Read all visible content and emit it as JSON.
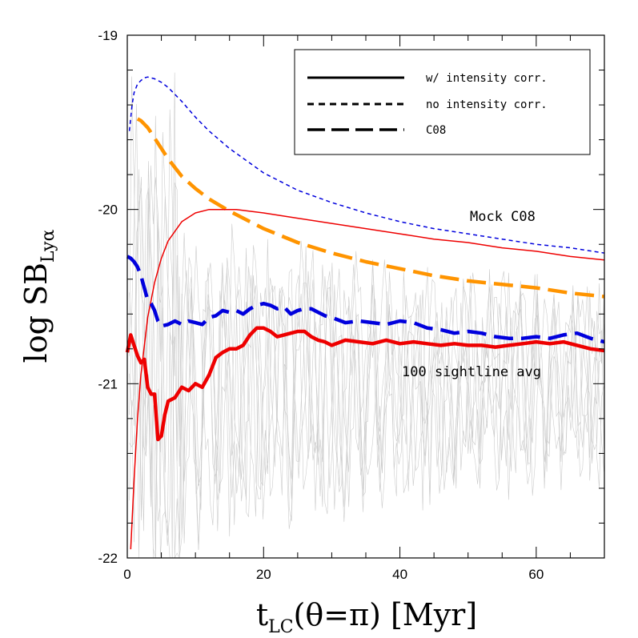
{
  "chart_data": {
    "type": "line",
    "xlabel": {
      "main": "t",
      "sub": "LC",
      "rest": "(θ=π)  [Myr]"
    },
    "ylabel": {
      "main": "log SB",
      "sub": "Lyα"
    },
    "xlim": [
      0,
      70
    ],
    "ylim": [
      -22,
      -19
    ],
    "xticks": [
      0,
      20,
      40,
      60
    ],
    "yticks": [
      -22,
      -21,
      -20,
      -19
    ],
    "xtick_labels": [
      "0",
      "20",
      "40",
      "60"
    ],
    "ytick_labels": [
      "-22",
      "-21",
      "-20",
      "-19"
    ],
    "grid": false,
    "legend_position": "top-right",
    "legend": [
      {
        "label": "w/ intensity corr.",
        "style": "solid"
      },
      {
        "label": "no intensity corr.",
        "style": "dotted"
      },
      {
        "label": "C08",
        "style": "dashed"
      }
    ],
    "annotations": [
      {
        "text": "Mock C08",
        "x": 57,
        "y": -20.05
      },
      {
        "text": "100 sightline avg",
        "x": 54,
        "y": -20.98
      }
    ],
    "colors": {
      "red": "#ee0000",
      "blue": "#0000dd",
      "orange": "#ff9400",
      "gray": "#cccccc"
    },
    "series": [
      {
        "group": "mock",
        "color": "#0000dd",
        "style": "dotted",
        "width": "thin",
        "x": [
          0.3,
          0.7,
          1,
          1.5,
          2,
          2.5,
          3,
          3.5,
          4,
          5,
          6,
          8,
          10,
          12,
          15,
          20,
          25,
          30,
          35,
          40,
          45,
          50,
          55,
          60,
          65,
          70
        ],
        "y": [
          -19.55,
          -19.4,
          -19.33,
          -19.28,
          -19.26,
          -19.245,
          -19.24,
          -19.245,
          -19.25,
          -19.27,
          -19.3,
          -19.38,
          -19.47,
          -19.55,
          -19.65,
          -19.79,
          -19.89,
          -19.96,
          -20.02,
          -20.07,
          -20.11,
          -20.14,
          -20.17,
          -20.2,
          -20.22,
          -20.25
        ]
      },
      {
        "group": "mock",
        "color": "#ff9400",
        "style": "dashed",
        "width": "thick",
        "x": [
          1.5,
          2,
          3,
          4,
          5,
          6,
          8,
          10,
          12,
          15,
          20,
          25,
          30,
          35,
          40,
          45,
          50,
          55,
          60,
          65,
          70
        ],
        "y": [
          -19.48,
          -19.49,
          -19.53,
          -19.59,
          -19.65,
          -19.71,
          -19.81,
          -19.88,
          -19.94,
          -20.01,
          -20.11,
          -20.19,
          -20.25,
          -20.3,
          -20.34,
          -20.38,
          -20.41,
          -20.43,
          -20.45,
          -20.48,
          -20.5
        ]
      },
      {
        "group": "mock",
        "color": "#ee0000",
        "style": "solid",
        "width": "thin",
        "x": [
          0.5,
          1,
          1.5,
          2,
          3,
          4,
          5,
          6,
          8,
          10,
          12,
          14,
          16,
          20,
          25,
          30,
          35,
          40,
          45,
          50,
          55,
          60,
          65,
          70
        ],
        "y": [
          -21.95,
          -21.55,
          -21.2,
          -20.95,
          -20.62,
          -20.42,
          -20.28,
          -20.18,
          -20.07,
          -20.02,
          -20.0,
          -20.0,
          -20.0,
          -20.02,
          -20.05,
          -20.08,
          -20.11,
          -20.14,
          -20.17,
          -20.19,
          -20.22,
          -20.24,
          -20.27,
          -20.29
        ]
      },
      {
        "group": "avg",
        "color": "#0000dd",
        "style": "dashed",
        "width": "thick",
        "x": [
          0,
          0.5,
          1,
          1.5,
          2,
          2.5,
          3,
          3.5,
          4,
          4.5,
          5,
          6,
          7,
          8,
          9,
          10,
          11,
          12,
          13,
          14,
          15,
          16,
          17,
          18,
          19,
          20,
          21,
          22,
          23,
          24,
          25,
          26,
          27,
          28,
          29,
          30,
          32,
          34,
          36,
          38,
          40,
          42,
          44,
          46,
          48,
          50,
          52,
          54,
          56,
          58,
          60,
          62,
          64,
          66,
          68,
          70
        ],
        "y": [
          -20.27,
          -20.28,
          -20.3,
          -20.33,
          -20.38,
          -20.45,
          -20.52,
          -20.54,
          -20.58,
          -20.64,
          -20.67,
          -20.66,
          -20.64,
          -20.66,
          -20.64,
          -20.65,
          -20.66,
          -20.62,
          -20.61,
          -20.58,
          -20.59,
          -20.58,
          -20.6,
          -20.57,
          -20.55,
          -20.54,
          -20.55,
          -20.57,
          -20.56,
          -20.6,
          -20.58,
          -20.57,
          -20.57,
          -20.59,
          -20.61,
          -20.62,
          -20.65,
          -20.64,
          -20.65,
          -20.66,
          -20.64,
          -20.65,
          -20.68,
          -20.69,
          -20.71,
          -20.7,
          -20.71,
          -20.73,
          -20.74,
          -20.74,
          -20.73,
          -20.74,
          -20.72,
          -20.71,
          -20.74,
          -20.76
        ]
      },
      {
        "group": "avg",
        "color": "#ee0000",
        "style": "solid",
        "width": "thick",
        "x": [
          0,
          0.5,
          1,
          1.5,
          2,
          2.5,
          3,
          3.5,
          4,
          4.5,
          5,
          5.5,
          6,
          7,
          8,
          9,
          10,
          11,
          12,
          13,
          14,
          15,
          16,
          17,
          18,
          19,
          20,
          21,
          22,
          23,
          24,
          25,
          26,
          27,
          28,
          29,
          30,
          32,
          34,
          36,
          38,
          40,
          42,
          44,
          46,
          48,
          50,
          52,
          54,
          56,
          58,
          60,
          62,
          64,
          66,
          68,
          70
        ],
        "y": [
          -20.82,
          -20.72,
          -20.78,
          -20.84,
          -20.88,
          -20.86,
          -21.02,
          -21.06,
          -21.06,
          -21.32,
          -21.3,
          -21.18,
          -21.1,
          -21.08,
          -21.02,
          -21.04,
          -21.0,
          -21.02,
          -20.95,
          -20.85,
          -20.82,
          -20.8,
          -20.8,
          -20.78,
          -20.72,
          -20.68,
          -20.68,
          -20.7,
          -20.73,
          -20.72,
          -20.71,
          -20.7,
          -20.7,
          -20.73,
          -20.75,
          -20.76,
          -20.78,
          -20.75,
          -20.76,
          -20.77,
          -20.75,
          -20.77,
          -20.76,
          -20.77,
          -20.78,
          -20.77,
          -20.78,
          -20.78,
          -20.79,
          -20.78,
          -20.77,
          -20.76,
          -20.77,
          -20.76,
          -20.78,
          -20.8,
          -20.81
        ]
      }
    ]
  }
}
